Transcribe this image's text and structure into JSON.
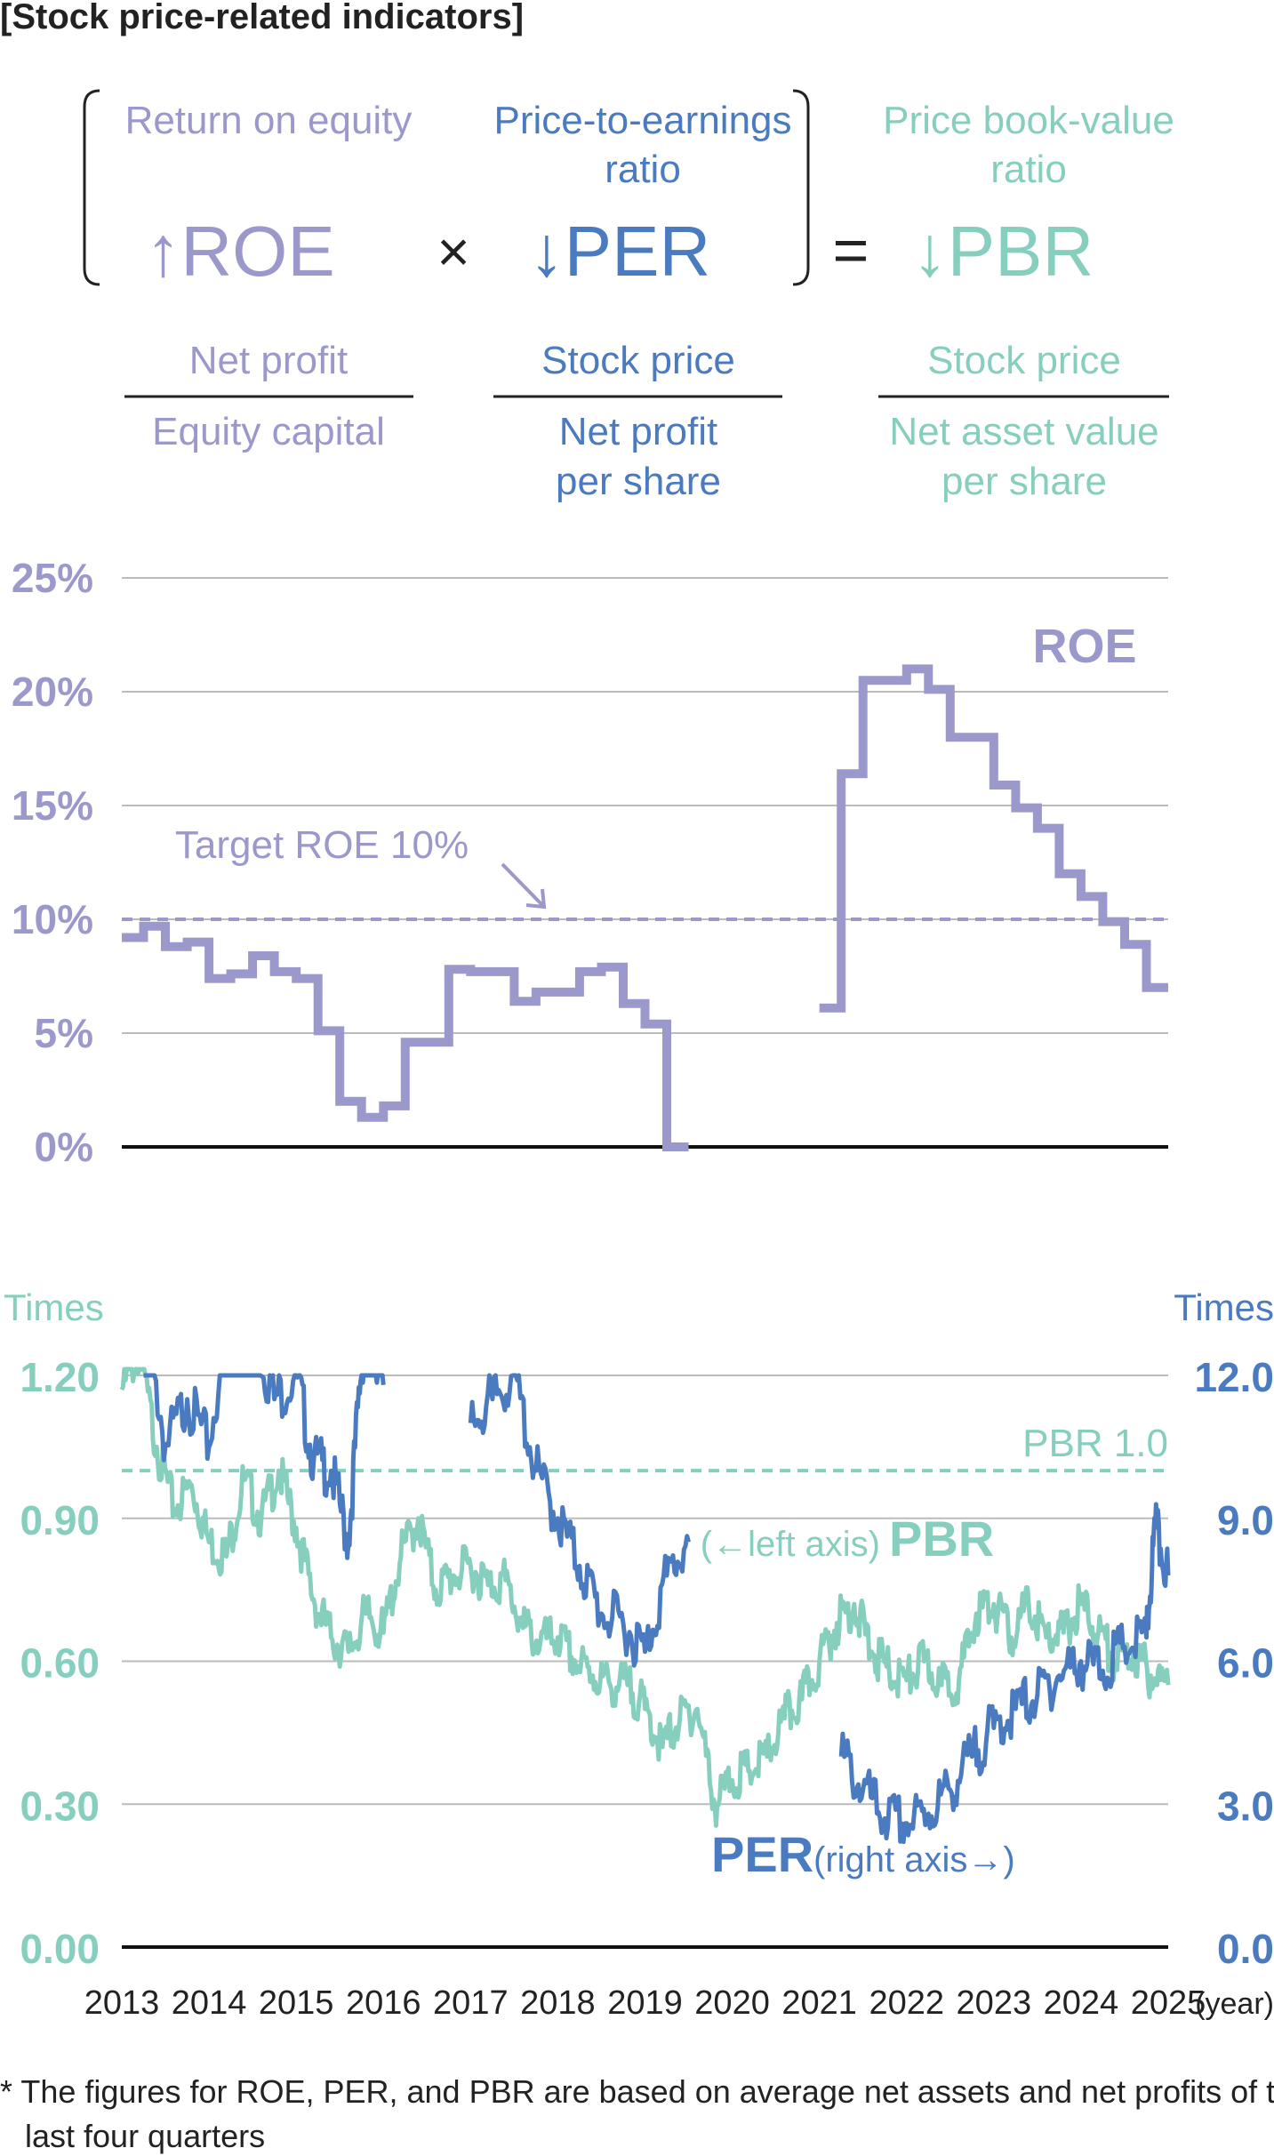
{
  "page_title": "[Stock price-related indicators]",
  "colors": {
    "roe": "#9b98cc",
    "per": "#4a7bc0",
    "pbr": "#86cfbe",
    "text": "#222222",
    "grid": "#bbbbbb",
    "axis": "#111111"
  },
  "formula": {
    "roe_name": "Return on equity",
    "roe_symbol": "↑ROE",
    "times_sign": "×",
    "per_name_line1": "Price-to-earnings",
    "per_name_line2": "ratio",
    "per_symbol": "↓PER",
    "equals_sign": "=",
    "pbr_name_line1": "Price book-value",
    "pbr_name_line2": "ratio",
    "pbr_symbol": "↓PBR",
    "roe_numerator": "Net profit",
    "roe_denominator": "Equity capital",
    "per_numerator": "Stock price",
    "per_denominator_line1": "Net profit",
    "per_denominator_line2": "per share",
    "pbr_numerator": "Stock price",
    "pbr_denominator_line1": "Net asset value",
    "pbr_denominator_line2": "per share"
  },
  "footnote_line1": "* The figures for ROE, PER, and PBR are based on average net assets and net profits of the",
  "footnote_line2": "last four quarters",
  "chart_data": [
    {
      "type": "line",
      "series": [
        {
          "name": "ROE",
          "step": true,
          "x": [
            2013.0,
            2013.25,
            2013.5,
            2013.75,
            2014.0,
            2014.25,
            2014.5,
            2014.75,
            2015.0,
            2015.25,
            2015.5,
            2015.75,
            2016.0,
            2016.25,
            2016.5,
            2016.75,
            2017.0,
            2017.25,
            2017.5,
            2017.75,
            2018.0,
            2018.25,
            2018.5,
            2018.75,
            2019.0,
            2019.25,
            2019.5,
            2019.75,
            2020.0,
            2020.25,
            2020.5,
            2020.75,
            2021.0,
            2021.25,
            2021.5,
            2021.75,
            2022.0,
            2022.25,
            2022.5,
            2022.75,
            2023.0,
            2023.25,
            2023.5,
            2023.75,
            2024.0,
            2024.25,
            2024.5,
            2024.75,
            2025.0
          ],
          "values": [
            9.2,
            9.7,
            8.8,
            9.0,
            7.4,
            7.6,
            8.4,
            7.7,
            7.4,
            5.1,
            2.0,
            1.3,
            1.8,
            4.6,
            4.6,
            7.8,
            7.7,
            7.7,
            6.4,
            6.8,
            6.8,
            7.7,
            7.9,
            6.3,
            5.4,
            0.0,
            0.0,
            0.0,
            0.0,
            0.0,
            0.0,
            0.0,
            6.1,
            16.4,
            20.5,
            20.5,
            21.0,
            20.1,
            18.0,
            18.0,
            15.9,
            14.9,
            14.0,
            12.0,
            11.0,
            9.9,
            8.9,
            7.0,
            7.0
          ],
          "gap": [
            2019.5,
            2021.0
          ]
        }
      ],
      "target_line": {
        "label": "Target ROE 10%",
        "value": 10
      },
      "series_label": "ROE",
      "xlim": [
        2013,
        2025
      ],
      "ylim": [
        0,
        25
      ],
      "y_ticks": [
        "0%",
        "5%",
        "10%",
        "15%",
        "20%",
        "25%"
      ],
      "y_tick_values": [
        0,
        5,
        10,
        15,
        20,
        25
      ],
      "grid": true
    },
    {
      "type": "line",
      "left_axis": {
        "title": "Times",
        "ticks": [
          "0.00",
          "0.30",
          "0.60",
          "0.90",
          "1.20"
        ],
        "tick_values": [
          0,
          0.3,
          0.6,
          0.9,
          1.2
        ],
        "range": [
          0,
          1.2
        ]
      },
      "right_axis": {
        "title": "Times",
        "ticks": [
          "0.0",
          "3.0",
          "6.0",
          "9.0",
          "12.0"
        ],
        "tick_values": [
          0,
          3,
          6,
          9,
          12
        ],
        "range": [
          0,
          12
        ]
      },
      "x_ticks": [
        "2013",
        "2014",
        "2015",
        "2016",
        "2017",
        "2018",
        "2019",
        "2020",
        "2021",
        "2022",
        "2023",
        "2024",
        "2025"
      ],
      "x_unit": "(year)",
      "reference_line": {
        "label": "PBR 1.0",
        "value": 1.0,
        "axis": "left"
      },
      "series": [
        {
          "name": "PBR",
          "axis": "left",
          "label_prefix": "(←left axis)",
          "label": "PBR",
          "x": [
            2013.0,
            2013.2,
            2013.4,
            2013.6,
            2013.8,
            2014.0,
            2014.2,
            2014.4,
            2014.6,
            2014.8,
            2015.0,
            2015.2,
            2015.4,
            2015.6,
            2015.8,
            2016.0,
            2016.2,
            2016.4,
            2016.6,
            2016.8,
            2017.0,
            2017.2,
            2017.4,
            2017.6,
            2017.8,
            2018.0,
            2018.2,
            2018.4,
            2018.6,
            2018.8,
            2019.0,
            2019.2,
            2019.4,
            2019.6,
            2019.8,
            2020.0,
            2020.2,
            2020.4,
            2020.6,
            2020.8,
            2021.0,
            2021.2,
            2021.4,
            2021.6,
            2021.8,
            2022.0,
            2022.2,
            2022.4,
            2022.6,
            2022.8,
            2023.0,
            2023.2,
            2023.4,
            2023.6,
            2023.8,
            2024.0,
            2024.2,
            2024.4,
            2024.6,
            2024.8,
            2025.0
          ],
          "values": [
            1.17,
            1.25,
            1.05,
            0.92,
            0.97,
            0.85,
            0.82,
            0.98,
            0.9,
            1.0,
            0.88,
            0.73,
            0.65,
            0.62,
            0.7,
            0.66,
            0.82,
            0.9,
            0.75,
            0.78,
            0.8,
            0.76,
            0.77,
            0.67,
            0.64,
            0.65,
            0.6,
            0.57,
            0.55,
            0.55,
            0.5,
            0.42,
            0.48,
            0.5,
            0.3,
            0.35,
            0.37,
            0.4,
            0.48,
            0.52,
            0.6,
            0.68,
            0.72,
            0.62,
            0.58,
            0.56,
            0.6,
            0.55,
            0.56,
            0.7,
            0.72,
            0.65,
            0.72,
            0.65,
            0.66,
            0.72,
            0.66,
            0.6,
            0.62,
            0.57,
            0.55
          ],
          "gap": []
        },
        {
          "name": "PER",
          "axis": "right",
          "label": "PER",
          "label_suffix": "(right axis→)",
          "x": [
            2013.25,
            2013.5,
            2013.75,
            2014.0,
            2014.25,
            2014.5,
            2014.75,
            2015.0,
            2015.2,
            2015.4,
            2015.6,
            2015.75,
            2015.85,
            2016.0,
            2017.0,
            2017.25,
            2017.5,
            2017.75,
            2018.0,
            2018.25,
            2018.5,
            2018.75,
            2019.0,
            2019.25,
            2019.5,
            2021.25,
            2021.5,
            2021.75,
            2022.0,
            2022.25,
            2022.5,
            2022.75,
            2023.0,
            2023.25,
            2023.5,
            2023.75,
            2024.0,
            2024.25,
            2024.5,
            2024.75,
            2024.85,
            2025.0
          ],
          "values": [
            13.5,
            10.5,
            11.5,
            10.5,
            13.5,
            13.0,
            11.5,
            12.0,
            10.2,
            10.0,
            8.5,
            12.3,
            13.0,
            11.8,
            11.0,
            11.5,
            12.0,
            10.0,
            9.0,
            8.0,
            7.0,
            6.8,
            6.2,
            7.8,
            8.5,
            4.0,
            3.3,
            2.7,
            2.6,
            2.8,
            3.3,
            4.0,
            4.6,
            5.0,
            5.3,
            5.7,
            6.0,
            5.8,
            6.3,
            6.5,
            8.8,
            7.8
          ],
          "gap": [
            [
              2016.0,
              2017.0
            ],
            [
              2019.5,
              2021.25
            ]
          ]
        }
      ],
      "xlim": [
        2013,
        2025
      ],
      "grid": true
    }
  ]
}
